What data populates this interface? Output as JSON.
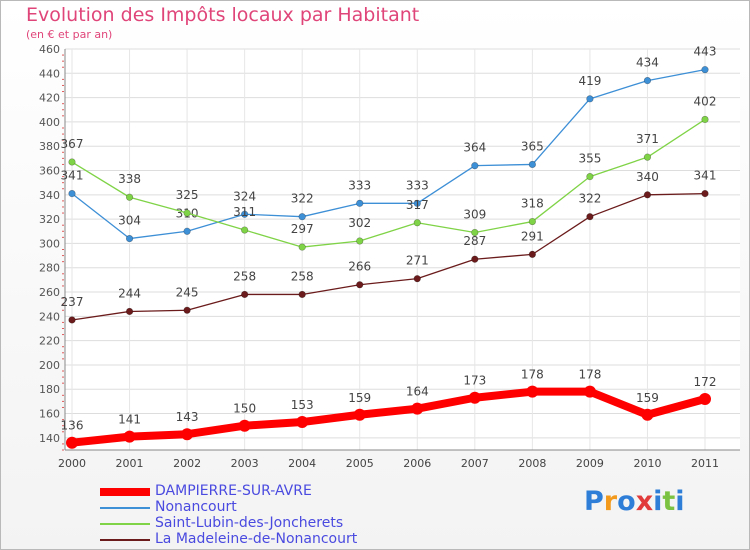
{
  "chart_data": {
    "type": "line",
    "title": "Evolution des Impôts locaux par Habitant",
    "subtitle": "(en € et par an)",
    "x": [
      "2000",
      "2001",
      "2002",
      "2003",
      "2004",
      "2005",
      "2006",
      "2007",
      "2008",
      "2009",
      "2010",
      "2011"
    ],
    "ylim": [
      130,
      460
    ],
    "yticks": [
      140,
      160,
      180,
      200,
      220,
      240,
      260,
      280,
      300,
      320,
      340,
      360,
      380,
      400,
      420,
      440,
      460
    ],
    "grid": true,
    "legend_position": "bottom-left",
    "series": [
      {
        "name": "DAMPIERRE-SUR-AVRE",
        "color": "#ff0000",
        "values": [
          136,
          141,
          143,
          150,
          153,
          159,
          164,
          173,
          178,
          178,
          159,
          172
        ]
      },
      {
        "name": "Nonancourt",
        "color": "#3d8fd6",
        "values": [
          341,
          304,
          310,
          324,
          322,
          333,
          333,
          364,
          365,
          419,
          434,
          443
        ]
      },
      {
        "name": "Saint-Lubin-des-Joncherets",
        "color": "#7fd346",
        "values": [
          367,
          338,
          325,
          311,
          297,
          302,
          317,
          309,
          318,
          355,
          371,
          402
        ]
      },
      {
        "name": "La Madeleine-de-Nonancourt",
        "color": "#6b1b1b",
        "values": [
          237,
          244,
          245,
          258,
          258,
          266,
          271,
          287,
          291,
          322,
          340,
          341
        ]
      }
    ]
  },
  "logo": {
    "letters": [
      "P",
      "r",
      "o",
      "x",
      "i",
      "t",
      "i"
    ],
    "colors": [
      "#2e7ed8",
      "#f39a1c",
      "#2e7ed8",
      "#e13b3b",
      "#2e7ed8",
      "#7cc242",
      "#2e7ed8"
    ]
  }
}
